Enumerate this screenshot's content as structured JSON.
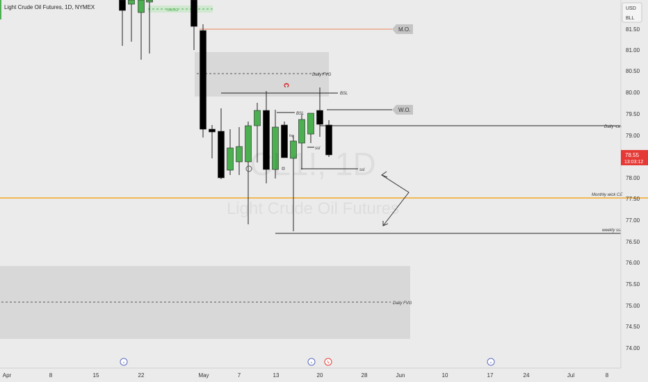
{
  "header": {
    "symbol_title": "Light Crude Oil Futures, 1D, NYMEX"
  },
  "currency_box": {
    "currency": "USD",
    "unit": "BLL"
  },
  "watermark": {
    "symbol": "CL1!, 1D",
    "name": "Light Crude Oil Futures"
  },
  "price_axis": {
    "ticks": [
      "81.50",
      "81.00",
      "80.50",
      "80.00",
      "79.50",
      "79.00",
      "78.50",
      "78.00",
      "77.50",
      "77.00",
      "76.50",
      "76.00",
      "75.50",
      "75.00",
      "74.50",
      "74.00"
    ],
    "last_price": "78.55",
    "countdown": "13:03:12"
  },
  "time_axis": {
    "ticks": [
      "Apr",
      "8",
      "15",
      "22",
      "May",
      "7",
      "13",
      "20",
      "28",
      "Jun",
      "10",
      "17",
      "24",
      "Jul",
      "8"
    ]
  },
  "annotations": {
    "mo_label": "M.O.",
    "wo_label": "W.O.",
    "daily_fvg_upper": "Daily FVG",
    "daily_fvg_lower": "Daily FVG",
    "bsl_upper": "BSL",
    "bsl_lower": "BSL",
    "daily_ce": "Daily -ce-",
    "monthly_wick_ce": "Monthly wick CE",
    "weekly_ssl": "weekly ssl",
    "ssl_1": "ssl",
    "ssl_2": "ssl",
    "nwog": "NWOG",
    "fvg_small": "fvg"
  },
  "colors": {
    "background": "#ebebeb",
    "bull_candle": "#4caf50",
    "bear_candle": "#000000",
    "mo_line": "#e8825a",
    "monthly_wick_line": "#f5a623",
    "fvg_box": "#d8d8d8",
    "last_price_badge": "#e53935",
    "nwog_box": "#cfe8cf"
  }
}
